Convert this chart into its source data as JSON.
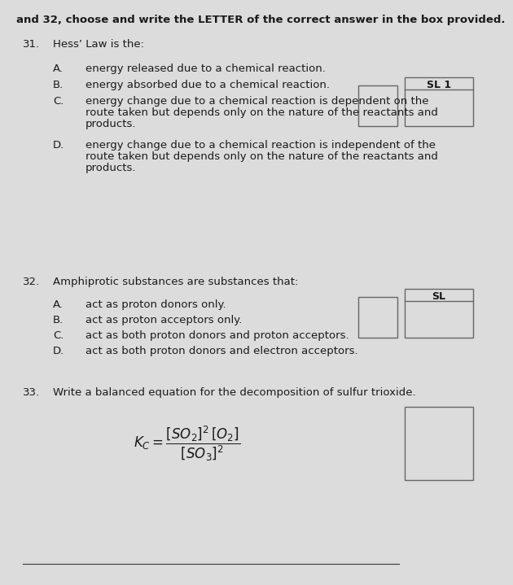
{
  "background_color": "#e0e0e0",
  "header_text": "and 32, choose and write the LETTER of the correct answer in the box provided.",
  "q31_number": "31.",
  "q31_question": "Hess’ Law is the:",
  "q31_A": "energy released due to a chemical reaction.",
  "q31_B": "energy absorbed due to a chemical reaction.",
  "q31_C1": "energy change due to a chemical reaction is dependent on the",
  "q31_C2": "route taken but depends only on the nature of the reactants and",
  "q31_C3": "products.",
  "q31_D1": "energy change due to a chemical reaction is independent of the",
  "q31_D2": "route taken but depends only on the nature of the reactants and",
  "q31_D3": "products.",
  "q32_number": "32.",
  "q32_question": "Amphiprotic substances are substances that:",
  "q32_A": "act as proton donors only.",
  "q32_B": "act as proton acceptors only.",
  "q32_C": "act as both proton donors and proton acceptors.",
  "q32_D": "act as both proton donors and electron acceptors.",
  "q33_number": "33.",
  "q33_question": "Write a balanced equation for the decomposition of sulfur trioxide.",
  "q33_formula": "$K_C = \\dfrac{[SO_2]^2\\,[O_2]}{[SO_3]^2}$",
  "sl1_label": "SL 1",
  "sl_label": "SL",
  "font_size": 9.5,
  "text_color": "#1a1a1a",
  "bg_color": "#dcdcdc",
  "box_edge_color": "#666666"
}
